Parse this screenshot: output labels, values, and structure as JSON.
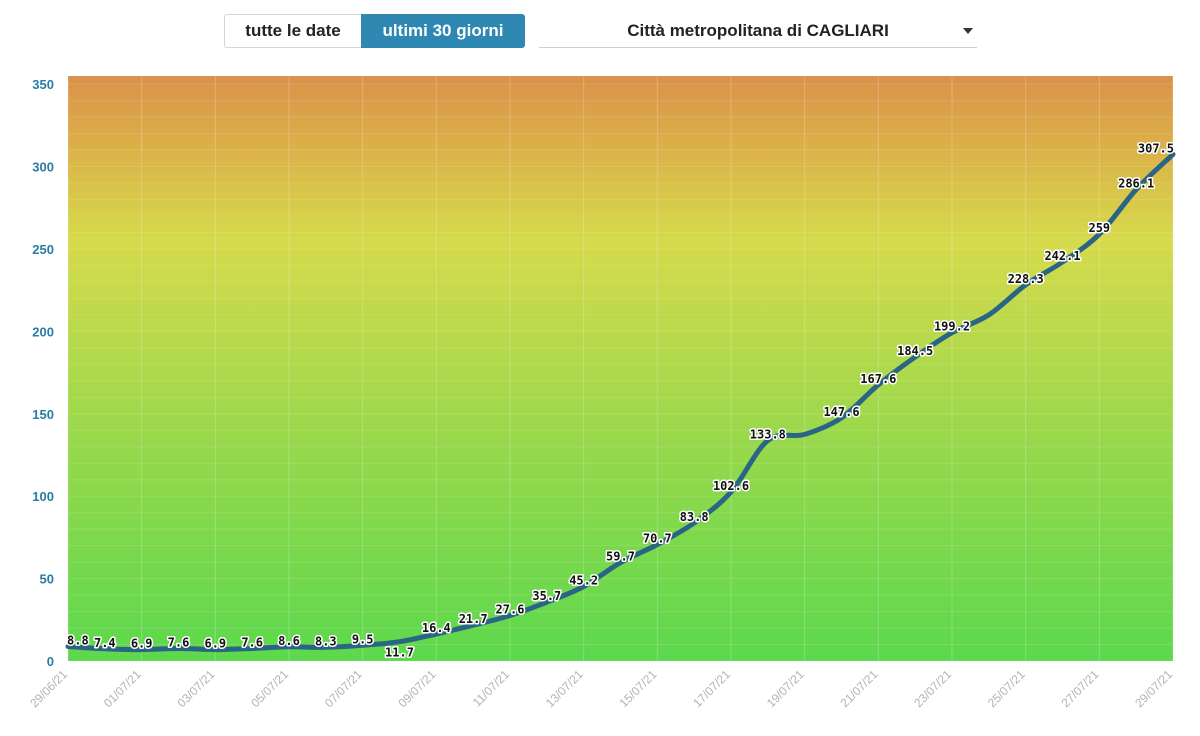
{
  "controls": {
    "all_dates_label": "tutte le date",
    "last30_label": "ultimi 30 giorni",
    "area_select_value": "Città metropolitana di CAGLIARI",
    "active_color": "#2e88b2"
  },
  "chart_data": {
    "type": "line",
    "x": [
      "29/06/21",
      "30/06/21",
      "01/07/21",
      "02/07/21",
      "03/07/21",
      "04/07/21",
      "05/07/21",
      "06/07/21",
      "07/07/21",
      "08/07/21",
      "09/07/21",
      "10/07/21",
      "11/07/21",
      "12/07/21",
      "13/07/21",
      "14/07/21",
      "15/07/21",
      "16/07/21",
      "17/07/21",
      "18/07/21",
      "19/07/21",
      "20/07/21",
      "21/07/21",
      "22/07/21",
      "23/07/21",
      "24/07/21",
      "25/07/21",
      "26/07/21",
      "27/07/21",
      "28/07/21",
      "29/07/21"
    ],
    "x_tick_labels": [
      "29/06/21",
      "01/07/21",
      "03/07/21",
      "05/07/21",
      "07/07/21",
      "09/07/21",
      "11/07/21",
      "13/07/21",
      "15/07/21",
      "17/07/21",
      "19/07/21",
      "21/07/21",
      "23/07/21",
      "25/07/21",
      "27/07/21",
      "29/07/21"
    ],
    "series": [
      {
        "values": [
          8.8,
          7.4,
          6.9,
          7.6,
          6.9,
          7.6,
          8.6,
          8.3,
          9.5,
          11.7,
          16.4,
          21.7,
          27.6,
          35.7,
          45.2,
          59.7,
          70.7,
          83.8,
          102.6,
          133.8,
          137.5,
          147.6,
          167.6,
          184.5,
          199.2,
          210.0,
          228.3,
          242.1,
          259,
          286.1,
          307.5
        ],
        "labels": [
          "8.8",
          "7.4",
          "6.9",
          "7.6",
          "6.9",
          "7.6",
          "8.6",
          "8.3",
          "9.5",
          "11.7",
          "16.4",
          "21.7",
          "27.6",
          "35.7",
          "45.2",
          "59.7",
          "70.7",
          "83.8",
          "102.6",
          "133.8",
          "",
          "147.6",
          "167.6",
          "184.5",
          "199.2",
          "",
          "228.3",
          "242.1",
          "259",
          "286.1",
          "307.5"
        ],
        "color": "#2b6585"
      }
    ],
    "ylim": [
      0,
      355
    ],
    "y_ticks": [
      0,
      50,
      100,
      150,
      200,
      250,
      300,
      350
    ],
    "y_tick_labels": [
      "0",
      "50",
      "100",
      "150",
      "200",
      "250",
      "300",
      "350"
    ],
    "grid": true,
    "background_gradient": [
      "#5cd84d",
      "#99d84c",
      "#d6da4b",
      "#dca249",
      "#d9924a"
    ]
  }
}
